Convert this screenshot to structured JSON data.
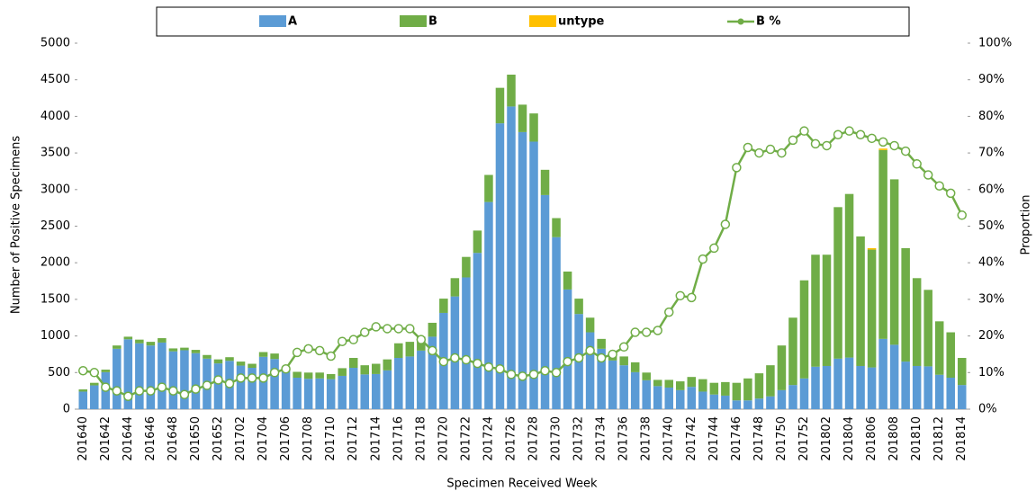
{
  "chart_data": {
    "type": "stacked-bar-line",
    "y_label": "Number of Positive Specimens",
    "y2_label": "Proportion",
    "x_label": "Specimen Received Week",
    "categories": [
      "201640",
      null,
      "201642",
      null,
      "201644",
      null,
      "201646",
      null,
      "201648",
      null,
      "201650",
      null,
      "201652",
      null,
      "201702",
      null,
      "201704",
      null,
      "201706",
      null,
      "201708",
      null,
      "201710",
      null,
      "201712",
      null,
      "201714",
      null,
      "201716",
      null,
      "201718",
      null,
      "201720",
      null,
      "201722",
      null,
      "201724",
      null,
      "201726",
      null,
      "201728",
      null,
      "201730",
      null,
      "201732",
      null,
      "201734",
      null,
      "201736",
      null,
      "201738",
      null,
      "201740",
      null,
      "201742",
      null,
      "201744",
      null,
      "201746",
      null,
      "201748",
      null,
      "201750",
      null,
      "201752",
      null,
      "201802",
      null,
      "201804",
      null,
      "201806",
      null,
      "201808",
      null,
      "201810",
      null,
      "201812",
      null,
      "201814"
    ],
    "series": [
      {
        "name": "A",
        "color": "#5b9bd5",
        "values": [
          240,
          325,
          505,
          825,
          955,
          900,
          870,
          910,
          790,
          805,
          765,
          690,
          625,
          660,
          595,
          565,
          715,
          685,
          515,
          430,
          415,
          420,
          410,
          455,
          565,
          475,
          480,
          530,
          700,
          720,
          800,
          990,
          1315,
          1540,
          1800,
          2135,
          2830,
          3905,
          4135,
          3785,
          3655,
          2925,
          2350,
          1635,
          1300,
          1050,
          825,
          665,
          600,
          505,
          395,
          315,
          295,
          260,
          305,
          240,
          200,
          185,
          120,
          120,
          145,
          175,
          260,
          330,
          420,
          580,
          590,
          690,
          705,
          590,
          570,
          960,
          880,
          650,
          590,
          585,
          470,
          430,
          330
        ]
      },
      {
        "name": "B",
        "color": "#70ad47",
        "values": [
          30,
          35,
          35,
          45,
          35,
          50,
          50,
          60,
          40,
          35,
          45,
          50,
          55,
          50,
          55,
          55,
          65,
          75,
          65,
          80,
          85,
          80,
          70,
          105,
          135,
          125,
          140,
          150,
          200,
          200,
          190,
          190,
          195,
          250,
          280,
          305,
          370,
          485,
          435,
          375,
          385,
          345,
          260,
          245,
          210,
          200,
          135,
          115,
          120,
          135,
          105,
          85,
          105,
          120,
          135,
          170,
          160,
          185,
          240,
          300,
          345,
          425,
          610,
          920,
          1340,
          1530,
          1520,
          2070,
          2235,
          1770,
          1610,
          2580,
          2260,
          1550,
          1200,
          1045,
          730,
          620,
          370
        ]
      },
      {
        "name": "untype",
        "color": "#ffc000",
        "values": [
          0,
          0,
          0,
          0,
          0,
          0,
          0,
          0,
          0,
          0,
          0,
          0,
          0,
          0,
          0,
          0,
          0,
          0,
          0,
          0,
          0,
          0,
          0,
          0,
          0,
          0,
          0,
          0,
          0,
          0,
          0,
          0,
          0,
          0,
          0,
          0,
          0,
          0,
          0,
          0,
          0,
          0,
          0,
          0,
          0,
          0,
          0,
          0,
          0,
          0,
          0,
          0,
          0,
          0,
          0,
          0,
          0,
          0,
          0,
          0,
          0,
          0,
          0,
          0,
          0,
          0,
          0,
          0,
          0,
          0,
          20,
          20,
          0,
          0,
          0,
          0,
          0,
          0,
          0
        ]
      },
      {
        "name": "B %",
        "color": "#70ad47",
        "axis": "y2",
        "values": [
          10.5,
          10,
          6,
          5,
          3.5,
          5,
          5,
          6,
          5,
          4,
          5.5,
          6.5,
          8,
          7,
          8.5,
          8.5,
          8.5,
          10,
          11,
          15.5,
          16.5,
          16,
          14.5,
          18.5,
          19,
          21,
          22.5,
          22,
          22,
          22,
          19,
          16,
          13,
          14,
          13.5,
          12.5,
          11.5,
          11,
          9.5,
          9,
          9.5,
          10.5,
          10,
          13,
          14,
          16,
          14,
          15,
          17,
          21,
          21,
          21.5,
          26.5,
          31,
          30.5,
          41,
          44,
          50.5,
          66,
          71.5,
          70,
          71,
          70,
          73.5,
          76,
          72.5,
          72,
          75,
          76,
          75,
          74,
          73,
          72,
          70.5,
          67,
          64,
          61,
          59,
          53
        ]
      }
    ],
    "ylim": [
      0,
      5000
    ],
    "yticks": [
      0,
      500,
      1000,
      1500,
      2000,
      2500,
      3000,
      3500,
      4000,
      4500,
      5000
    ],
    "y2lim": [
      0,
      100
    ],
    "y2ticks": [
      {
        "value": 0,
        "label": "0%"
      },
      {
        "value": 10,
        "label": "10%"
      },
      {
        "value": 20,
        "label": "20%"
      },
      {
        "value": 30,
        "label": "30%"
      },
      {
        "value": 40,
        "label": "40%"
      },
      {
        "value": 50,
        "label": "50%"
      },
      {
        "value": 60,
        "label": "60%"
      },
      {
        "value": 70,
        "label": "70%"
      },
      {
        "value": 80,
        "label": "80%"
      },
      {
        "value": 90,
        "label": "90%"
      },
      {
        "value": 100,
        "label": "100%"
      }
    ]
  }
}
